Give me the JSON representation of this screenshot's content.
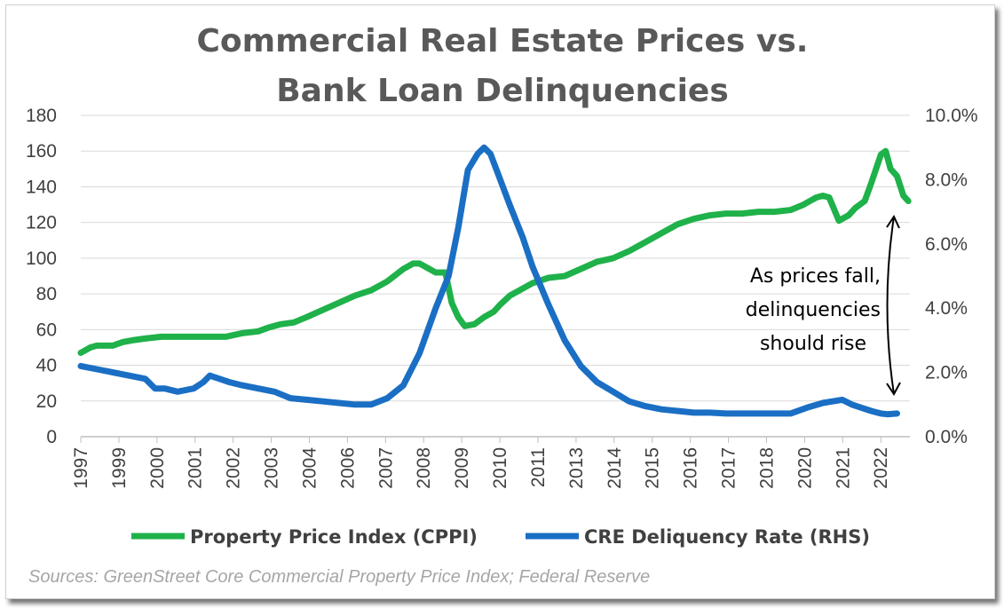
{
  "chart_data": {
    "type": "line",
    "title_line1": "Commercial Real Estate Prices vs.",
    "title_line2": "Bank Loan Delinquencies",
    "left_axis": {
      "ylim": [
        0,
        180
      ],
      "ticks": [
        "0",
        "20",
        "40",
        "60",
        "80",
        "100",
        "120",
        "140",
        "160",
        "180"
      ]
    },
    "right_axis": {
      "ylim": [
        0,
        10
      ],
      "ticks": [
        "0.0%",
        "2.0%",
        "4.0%",
        "6.0%",
        "8.0%",
        "10.0%"
      ]
    },
    "x_ticks": [
      "1997",
      "1999",
      "2000",
      "2001",
      "2002",
      "2003",
      "2004",
      "2006",
      "2007",
      "2008",
      "2009",
      "2010",
      "2011",
      "2013",
      "2014",
      "2015",
      "2016",
      "2017",
      "2018",
      "2020",
      "2021",
      "2022"
    ],
    "x_range": [
      1997.0,
      2022.7
    ],
    "grid": "horizontal",
    "legend_position": "bottom",
    "series": [
      {
        "name": "Property Price Index (CPPI)",
        "axis": "left",
        "color": "#1fb14a",
        "x": [
          1997.0,
          1997.3,
          1997.5,
          1998.0,
          1998.3,
          1998.6,
          1999.0,
          1999.5,
          2000.0,
          2000.5,
          2001.0,
          2001.5,
          2002.0,
          2002.5,
          2002.8,
          2003.2,
          2003.6,
          2004.0,
          2004.5,
          2005.0,
          2005.5,
          2006.0,
          2006.5,
          2007.0,
          2007.3,
          2007.5,
          2007.7,
          2008.0,
          2008.3,
          2008.5,
          2008.7,
          2008.9,
          2009.2,
          2009.5,
          2009.8,
          2010.0,
          2010.3,
          2010.6,
          2011.0,
          2011.5,
          2012.0,
          2012.5,
          2013.0,
          2013.5,
          2014.0,
          2014.5,
          2015.0,
          2015.5,
          2016.0,
          2016.5,
          2017.0,
          2017.5,
          2018.0,
          2018.5,
          2019.0,
          2019.4,
          2019.6,
          2019.8,
          2020.0,
          2020.2,
          2020.5,
          2020.8,
          2021.0,
          2021.3,
          2021.5,
          2021.8,
          2021.95,
          2022.1,
          2022.3,
          2022.5,
          2022.65
        ],
        "values": [
          47,
          50,
          51,
          51,
          53,
          54,
          55,
          56,
          56,
          56,
          56,
          56,
          58,
          59,
          61,
          63,
          64,
          67,
          71,
          75,
          79,
          82,
          87,
          94,
          97,
          97,
          95,
          92,
          92,
          75,
          67,
          62,
          63,
          67,
          70,
          74,
          79,
          82,
          86,
          89,
          90,
          94,
          98,
          100,
          104,
          109,
          114,
          119,
          122,
          124,
          125,
          125,
          126,
          126,
          127,
          130,
          132,
          134,
          135,
          134,
          121,
          124,
          128,
          132,
          142,
          158,
          160,
          150,
          146,
          135,
          132
        ]
      },
      {
        "name": "CRE Deliquency Rate (RHS)",
        "axis": "right",
        "color": "#1a6fc4",
        "x": [
          1997.0,
          1997.5,
          1998.0,
          1998.5,
          1999.0,
          1999.3,
          1999.6,
          2000.0,
          2000.5,
          2000.8,
          2001.0,
          2001.3,
          2001.6,
          2002.0,
          2002.5,
          2003.0,
          2003.5,
          2004.0,
          2004.5,
          2005.0,
          2005.5,
          2006.0,
          2006.5,
          2007.0,
          2007.5,
          2008.0,
          2008.4,
          2008.7,
          2009.0,
          2009.3,
          2009.5,
          2009.7,
          2010.0,
          2010.3,
          2010.7,
          2011.0,
          2011.5,
          2012.0,
          2012.5,
          2013.0,
          2013.5,
          2014.0,
          2014.5,
          2015.0,
          2015.5,
          2016.0,
          2016.5,
          2017.0,
          2017.5,
          2018.0,
          2018.5,
          2019.0,
          2019.5,
          2020.0,
          2020.3,
          2020.6,
          2020.9,
          2021.2,
          2021.5,
          2021.8,
          2022.0,
          2022.3
        ],
        "values": [
          2.2,
          2.1,
          2.0,
          1.9,
          1.8,
          1.5,
          1.5,
          1.4,
          1.5,
          1.7,
          1.9,
          1.8,
          1.7,
          1.6,
          1.5,
          1.4,
          1.2,
          1.15,
          1.1,
          1.05,
          1.0,
          1.0,
          1.2,
          1.6,
          2.6,
          4.0,
          5.0,
          6.5,
          8.3,
          8.8,
          9.0,
          8.8,
          8.0,
          7.2,
          6.2,
          5.3,
          4.1,
          3.0,
          2.2,
          1.7,
          1.4,
          1.1,
          0.95,
          0.85,
          0.8,
          0.75,
          0.75,
          0.72,
          0.72,
          0.72,
          0.72,
          0.72,
          0.9,
          1.05,
          1.1,
          1.15,
          1.0,
          0.9,
          0.8,
          0.72,
          0.7,
          0.72
        ]
      }
    ],
    "annotation": [
      "As prices fall,",
      "delinquencies",
      "should rise"
    ],
    "source": "Sources: GreenStreet Core Commercial Property Price Index; Federal Reserve"
  }
}
